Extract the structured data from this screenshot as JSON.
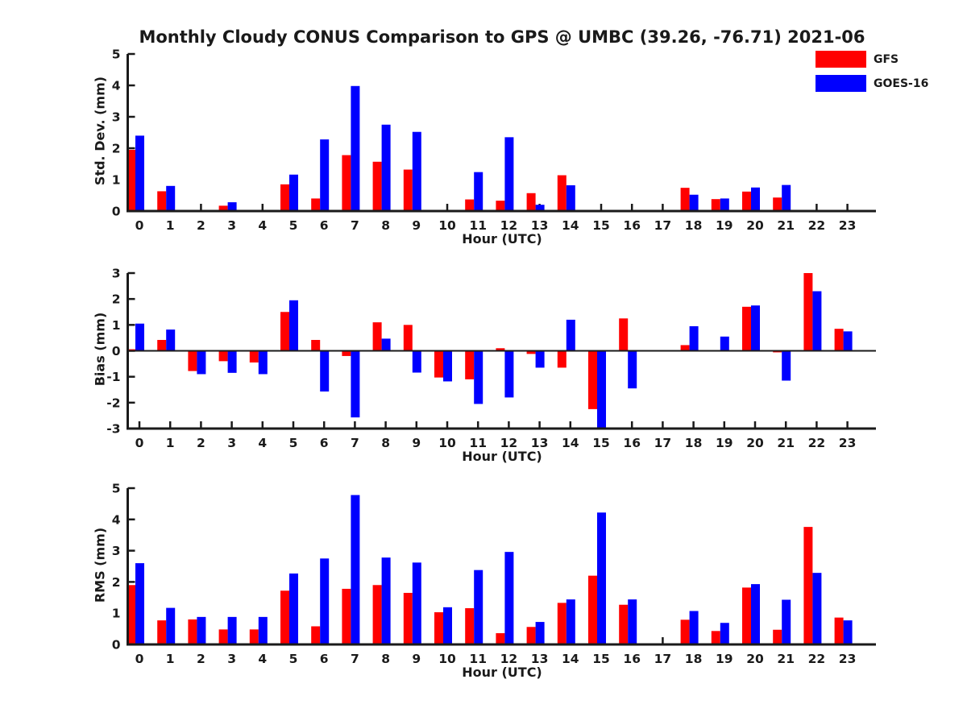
{
  "title": "Monthly Cloudy CONUS Comparison to GPS @ UMBC (39.26, -76.71) 2021-06",
  "legend": {
    "items": [
      {
        "label": "GFS",
        "color": "#ff0000"
      },
      {
        "label": "GOES-16",
        "color": "#0000ff"
      }
    ]
  },
  "colors": {
    "axis": "#1a1a1a",
    "text": "#1a1a1a",
    "background": "#ffffff"
  },
  "chart_data": [
    {
      "type": "bar",
      "ylabel": "Std. Dev. (mm)",
      "xlabel": "Hour (UTC)",
      "categories": [
        "0",
        "1",
        "2",
        "3",
        "4",
        "5",
        "6",
        "7",
        "8",
        "9",
        "10",
        "11",
        "12",
        "13",
        "14",
        "15",
        "16",
        "17",
        "18",
        "19",
        "20",
        "21",
        "22",
        "23"
      ],
      "ylim": [
        0,
        5
      ],
      "yticks": [
        0,
        1,
        2,
        3,
        4,
        5
      ],
      "grid": false,
      "legend_position": "top-right",
      "series": [
        {
          "name": "GFS",
          "color": "#ff0000",
          "values": [
            1.95,
            0.63,
            null,
            0.17,
            null,
            0.85,
            0.4,
            1.78,
            1.57,
            1.32,
            null,
            0.37,
            0.33,
            0.57,
            1.14,
            null,
            null,
            null,
            0.74,
            0.38,
            0.62,
            0.43,
            null,
            null
          ]
        },
        {
          "name": "GOES-16",
          "color": "#0000ff",
          "values": [
            2.4,
            0.8,
            null,
            0.28,
            null,
            1.16,
            2.28,
            3.98,
            2.75,
            2.52,
            null,
            1.24,
            2.35,
            0.2,
            0.82,
            null,
            null,
            null,
            0.52,
            0.4,
            0.75,
            0.83,
            null,
            null
          ]
        }
      ]
    },
    {
      "type": "bar",
      "ylabel": "Bias (mm)",
      "xlabel": "Hour (UTC)",
      "categories": [
        "0",
        "1",
        "2",
        "3",
        "4",
        "5",
        "6",
        "7",
        "8",
        "9",
        "10",
        "11",
        "12",
        "13",
        "14",
        "15",
        "16",
        "17",
        "18",
        "19",
        "20",
        "21",
        "22",
        "23"
      ],
      "ylim": [
        -3,
        3
      ],
      "yticks": [
        -3,
        -2,
        -1,
        0,
        1,
        2,
        3
      ],
      "grid": false,
      "zero_line": true,
      "series": [
        {
          "name": "GFS",
          "color": "#ff0000",
          "values": [
            0.06,
            0.42,
            -0.78,
            -0.4,
            -0.45,
            1.5,
            0.42,
            -0.2,
            1.1,
            1.0,
            -1.03,
            -1.1,
            0.1,
            -0.12,
            -0.65,
            -2.25,
            1.25,
            null,
            0.22,
            null,
            1.7,
            -0.06,
            3.0,
            0.85
          ]
        },
        {
          "name": "GOES-16",
          "color": "#0000ff",
          "values": [
            1.05,
            0.82,
            -0.9,
            -0.85,
            -0.9,
            1.95,
            -1.57,
            -2.57,
            0.47,
            -0.84,
            -1.18,
            -2.05,
            -1.8,
            -0.65,
            1.2,
            -3.0,
            -1.45,
            null,
            0.95,
            0.55,
            1.75,
            -1.15,
            2.3,
            0.75
          ]
        }
      ]
    },
    {
      "type": "bar",
      "ylabel": "RMS (mm)",
      "xlabel": "Hour (UTC)",
      "categories": [
        "0",
        "1",
        "2",
        "3",
        "4",
        "5",
        "6",
        "7",
        "8",
        "9",
        "10",
        "11",
        "12",
        "13",
        "14",
        "15",
        "16",
        "17",
        "18",
        "19",
        "20",
        "21",
        "22",
        "23"
      ],
      "ylim": [
        0,
        5
      ],
      "yticks": [
        0,
        1,
        2,
        3,
        4,
        5
      ],
      "grid": false,
      "series": [
        {
          "name": "GFS",
          "color": "#ff0000",
          "values": [
            1.9,
            0.77,
            0.8,
            0.48,
            0.48,
            1.72,
            0.58,
            1.78,
            1.9,
            1.65,
            1.03,
            1.16,
            0.36,
            0.56,
            1.33,
            2.2,
            1.27,
            null,
            0.79,
            0.43,
            1.82,
            0.47,
            3.76,
            0.86
          ]
        },
        {
          "name": "GOES-16",
          "color": "#0000ff",
          "values": [
            2.6,
            1.17,
            0.88,
            0.88,
            0.88,
            2.27,
            2.75,
            4.78,
            2.78,
            2.62,
            1.19,
            2.38,
            2.96,
            0.72,
            1.44,
            4.22,
            1.44,
            null,
            1.07,
            0.69,
            1.93,
            1.43,
            2.29,
            0.77
          ]
        }
      ]
    }
  ]
}
